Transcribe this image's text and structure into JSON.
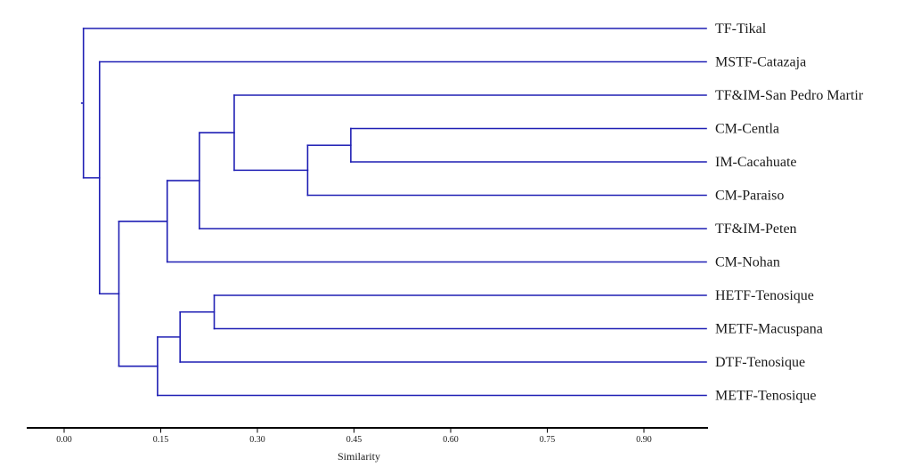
{
  "chart_data": {
    "type": "dendrogram",
    "xlabel": "Similarity",
    "xticks": [
      0.0,
      0.15,
      0.3,
      0.45,
      0.6,
      0.75,
      0.9
    ],
    "xtick_labels": [
      "0.00",
      "0.15",
      "0.30",
      "0.45",
      "0.60",
      "0.75",
      "0.90"
    ],
    "xlim": [
      -0.015,
      1.0
    ],
    "grid": false,
    "line_color": "#1f1fb4",
    "axis_color": "#000000",
    "leaves": [
      "TF-Tikal",
      "MSTF-Catazaja",
      "TF&IM-San Pedro Martir",
      "CM-Centla",
      "IM-Cacahuate",
      "CM-Paraiso",
      "TF&IM-Peten",
      "CM-Nohan",
      "HETF-Tenosique",
      "METF-Macuspana",
      "DTF-Tenosique",
      "METF-Tenosique"
    ],
    "merges": [
      {
        "left": "CM-Centla",
        "right": "IM-Cacahuate",
        "similarity": 0.445
      },
      {
        "left": "HETF-Tenosique",
        "right": "METF-Macuspana",
        "similarity": 0.233
      },
      {
        "left": "CM-Centla+IM-Cacahuate",
        "right": "CM-Paraiso",
        "similarity": 0.378
      },
      {
        "left": "TF&IM-San Pedro Martir",
        "right": "CM-Centla+IM-Cacahuate+CM-Paraiso",
        "similarity": 0.264
      },
      {
        "left": "HETF-Tenosique+METF-Macuspana",
        "right": "DTF-Tenosique",
        "similarity": 0.18
      },
      {
        "left": "TF&IM-San Pedro Martir+CM-Centla+IM-Cacahuate+CM-Paraiso",
        "right": "TF&IM-Peten",
        "similarity": 0.21
      },
      {
        "left": "TF&IM-San Pedro Martir+CM-Centla+IM-Cacahuate+CM-Paraiso+TF&IM-Peten",
        "right": "CM-Nohan",
        "similarity": 0.16
      },
      {
        "left": "HETF-Tenosique+METF-Macuspana+DTF-Tenosique",
        "right": "METF-Tenosique",
        "similarity": 0.145
      },
      {
        "left": "TF&IM-San Pedro Martir+CM-Centla+IM-Cacahuate+CM-Paraiso+TF&IM-Peten+CM-Nohan",
        "right": "HETF-Tenosique+METF-Macuspana+DTF-Tenosique+METF-Tenosique",
        "similarity": 0.085
      },
      {
        "left": "MSTF-Catazaja",
        "right": "TF&IM-San Pedro Martir+CM-Centla+IM-Cacahuate+CM-Paraiso+TF&IM-Peten+CM-Nohan+HETF-Tenosique+METF-Macuspana+DTF-Tenosique+METF-Tenosique",
        "similarity": 0.055
      },
      {
        "left": "TF-Tikal",
        "right": "MSTF-Catazaja+TF&IM-San Pedro Martir+CM-Centla+IM-Cacahuate+CM-Paraiso+TF&IM-Peten+CM-Nohan+HETF-Tenosique+METF-Macuspana+DTF-Tenosique+METF-Tenosique",
        "similarity": 0.03
      }
    ]
  }
}
